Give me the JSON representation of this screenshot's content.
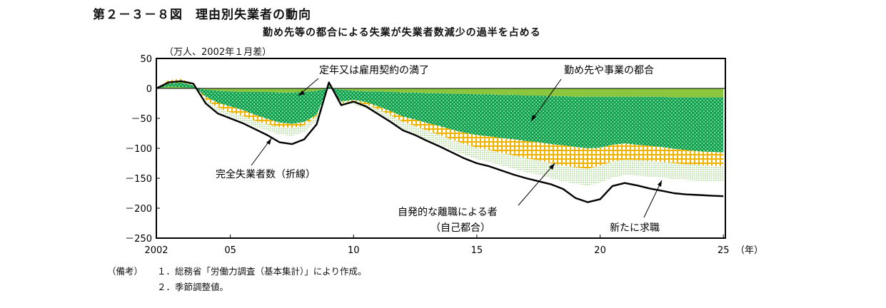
{
  "figure": {
    "title": "第２－３－８図　理由別失業者の動向",
    "subtitle": "勤め先等の都合による失業が失業者数減少の過半を占める",
    "unit": "（万人、2002年１月差）",
    "x_unit": "（年）"
  },
  "notes": [
    {
      "lead": "（備考）",
      "text": "１．総務省「労働力調査（基本集計）」により作成。"
    },
    {
      "lead": "",
      "text": "２．季節調整値。"
    }
  ],
  "annotations": {
    "retirement": "定年又は雇用契約の満了",
    "company": "勤め先や事業の都合",
    "total": "完全失業者数（折線）",
    "voluntary_1": "自発的な離職による者",
    "voluntary_2": "（自己都合）",
    "new_job": "新たに求職"
  },
  "colors": {
    "retirement": "#8cc63f",
    "company": "#0a9e4a",
    "company_light": "#7fd6a0",
    "voluntary": "#f0b400",
    "new_job": "#a8d98e",
    "total": "#000000"
  },
  "chart_data": {
    "type": "area",
    "xlim": [
      2002,
      2025.08
    ],
    "ylim": [
      -250,
      50
    ],
    "y_ticks": [
      50,
      0,
      -50,
      -100,
      -150,
      -200,
      -250
    ],
    "x_ticks": [
      {
        "value": 2002,
        "label": "2002"
      },
      {
        "value": 2005,
        "label": "05"
      },
      {
        "value": 2010,
        "label": "10"
      },
      {
        "value": 2015,
        "label": "15"
      },
      {
        "value": 2020,
        "label": "20"
      },
      {
        "value": 2025,
        "label": "25"
      }
    ],
    "x": [
      2002,
      2002.5,
      2003,
      2003.5,
      2004,
      2004.5,
      2005,
      2005.5,
      2006,
      2006.5,
      2007,
      2007.5,
      2008,
      2008.5,
      2009,
      2009.5,
      2010,
      2010.5,
      2011,
      2011.5,
      2012,
      2012.5,
      2013,
      2013.5,
      2014,
      2014.5,
      2015,
      2015.5,
      2016,
      2016.5,
      2017,
      2017.5,
      2018,
      2018.5,
      2019,
      2019.5,
      2020,
      2020.5,
      2021,
      2021.5,
      2022,
      2022.5,
      2023,
      2023.5,
      2024,
      2024.5,
      2025
    ],
    "series": [
      {
        "name": "定年又は雇用契約の満了",
        "values": [
          0,
          3,
          2,
          1,
          -2,
          -4,
          -5,
          -6,
          -6,
          -6,
          -7,
          -7,
          -6,
          -4,
          0,
          -2,
          -4,
          -5,
          -5,
          -6,
          -7,
          -7,
          -8,
          -8,
          -9,
          -9,
          -10,
          -10,
          -11,
          -11,
          -12,
          -12,
          -13,
          -13,
          -14,
          -14,
          -14,
          -14,
          -14,
          -14,
          -14,
          -14,
          -15,
          -15,
          -15,
          -15,
          -15
        ]
      },
      {
        "name": "勤め先や事業の都合",
        "values": [
          0,
          5,
          8,
          4,
          -12,
          -20,
          -25,
          -30,
          -38,
          -45,
          -50,
          -52,
          -50,
          -40,
          5,
          -20,
          -15,
          -18,
          -25,
          -32,
          -40,
          -45,
          -50,
          -55,
          -60,
          -65,
          -68,
          -70,
          -72,
          -74,
          -76,
          -78,
          -80,
          -82,
          -84,
          -86,
          -85,
          -80,
          -78,
          -80,
          -82,
          -84,
          -86,
          -88,
          -90,
          -91,
          -92
        ]
      },
      {
        "name": "自発的な離職による者（自己都合）",
        "values": [
          0,
          6,
          6,
          3,
          -5,
          -8,
          -10,
          -10,
          -10,
          -9,
          -8,
          -7,
          -6,
          -3,
          4,
          -2,
          -3,
          -4,
          -5,
          -7,
          -9,
          -11,
          -13,
          -15,
          -17,
          -19,
          -21,
          -23,
          -25,
          -27,
          -29,
          -30,
          -32,
          -34,
          -34,
          -34,
          -30,
          -28,
          -27,
          -26,
          -25,
          -25,
          -24,
          -24,
          -23,
          -23,
          -23
        ]
      },
      {
        "name": "新たに求職",
        "values": [
          0,
          0,
          0,
          0,
          -4,
          -6,
          -8,
          -9,
          -10,
          -11,
          -12,
          -13,
          -11,
          -7,
          1,
          -4,
          -5,
          -6,
          -8,
          -10,
          -12,
          -13,
          -15,
          -16,
          -17,
          -18,
          -19,
          -20,
          -21,
          -22,
          -23,
          -24,
          -25,
          -26,
          -27,
          -28,
          -28,
          -27,
          -26,
          -26,
          -26,
          -26,
          -26,
          -26,
          -26,
          -26,
          -26
        ]
      },
      {
        "name": "完全失業者数（折線）",
        "kind": "line",
        "values": [
          0,
          10,
          12,
          8,
          -25,
          -42,
          -50,
          -58,
          -68,
          -78,
          -90,
          -93,
          -85,
          -60,
          10,
          -28,
          -22,
          -30,
          -43,
          -56,
          -70,
          -78,
          -88,
          -97,
          -107,
          -117,
          -125,
          -130,
          -137,
          -144,
          -150,
          -155,
          -160,
          -168,
          -183,
          -190,
          -185,
          -163,
          -158,
          -162,
          -167,
          -171,
          -175,
          -177,
          -178,
          -179,
          -180
        ]
      }
    ]
  }
}
